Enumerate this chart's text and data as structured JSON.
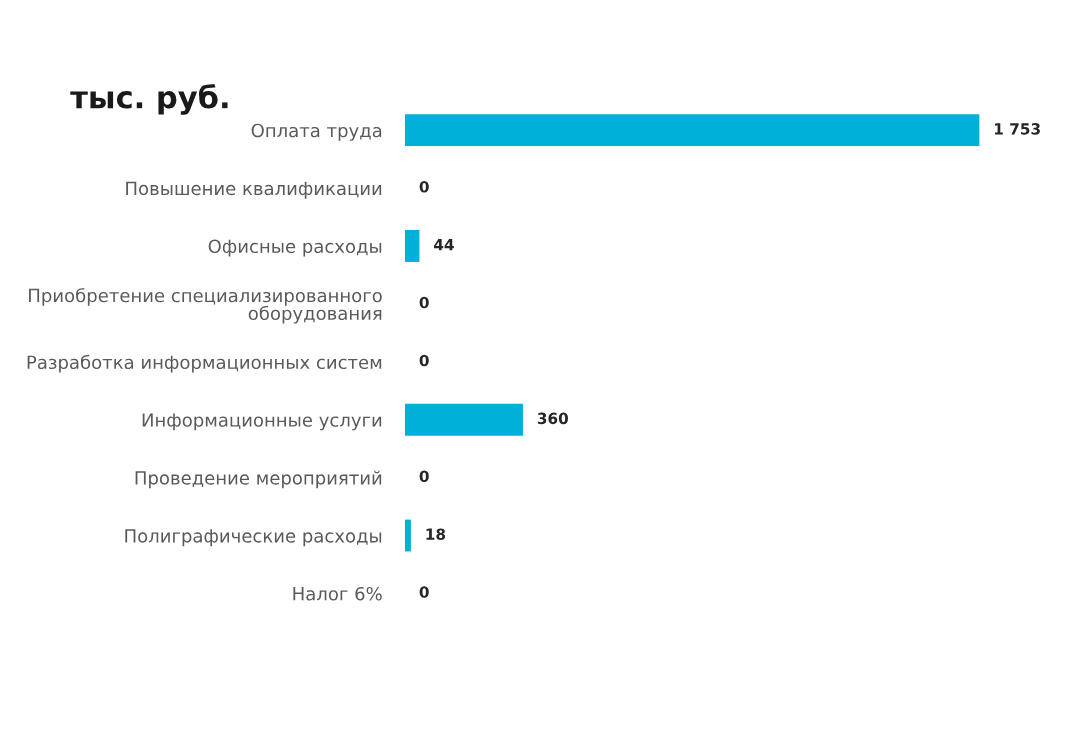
{
  "chart_data": {
    "type": "bar",
    "orientation": "horizontal",
    "title": "тыс. руб.",
    "categories": [
      "Оплата труда",
      "Повышение квалификации",
      "Офисные расходы",
      "Приобретение специализированного оборудования",
      "Разработка информационных систем",
      "Информационные услуги",
      "Проведение мероприятий",
      "Полиграфические расходы",
      "Налог 6%"
    ],
    "values": [
      1753,
      0,
      44,
      0,
      0,
      360,
      0,
      18,
      0
    ],
    "value_labels": [
      "1 753",
      "0",
      "44",
      "0",
      "0",
      "360",
      "0",
      "18",
      "0"
    ],
    "color": "#00b0d8",
    "grid": false,
    "legend": false
  }
}
